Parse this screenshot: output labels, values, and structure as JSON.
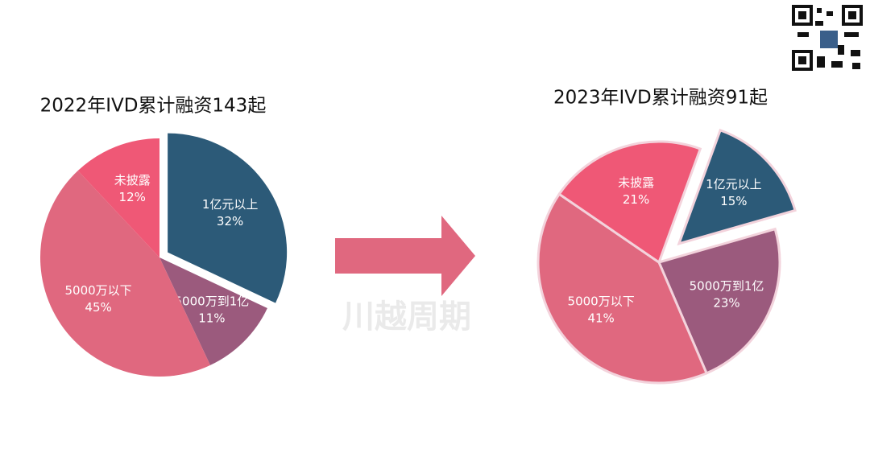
{
  "chart_data": [
    {
      "type": "pie",
      "title": "2022年IVD累计融资143起",
      "categories": [
        "1亿元以上",
        "5000万到1亿",
        "5000万以下",
        "未披露"
      ],
      "values": [
        32,
        11,
        45,
        12
      ],
      "value_labels": [
        "32%",
        "11%",
        "45%",
        "12%"
      ],
      "colors": [
        "#2c5a78",
        "#9b5a7d",
        "#e0687f",
        "#ef5876"
      ],
      "exploded": [
        "1亿元以上"
      ]
    },
    {
      "type": "pie",
      "title": "2023年IVD累计融资91起",
      "categories": [
        "1亿元以上",
        "5000万到1亿",
        "5000万以下",
        "未披露"
      ],
      "values": [
        15,
        23,
        41,
        21
      ],
      "value_labels": [
        "15%",
        "23%",
        "41%",
        "21%"
      ],
      "colors": [
        "#2c5a78",
        "#9b5a7d",
        "#e0687f",
        "#ef5876"
      ],
      "exploded": [
        "1亿元以上"
      ]
    }
  ],
  "watermark": "川越周期"
}
